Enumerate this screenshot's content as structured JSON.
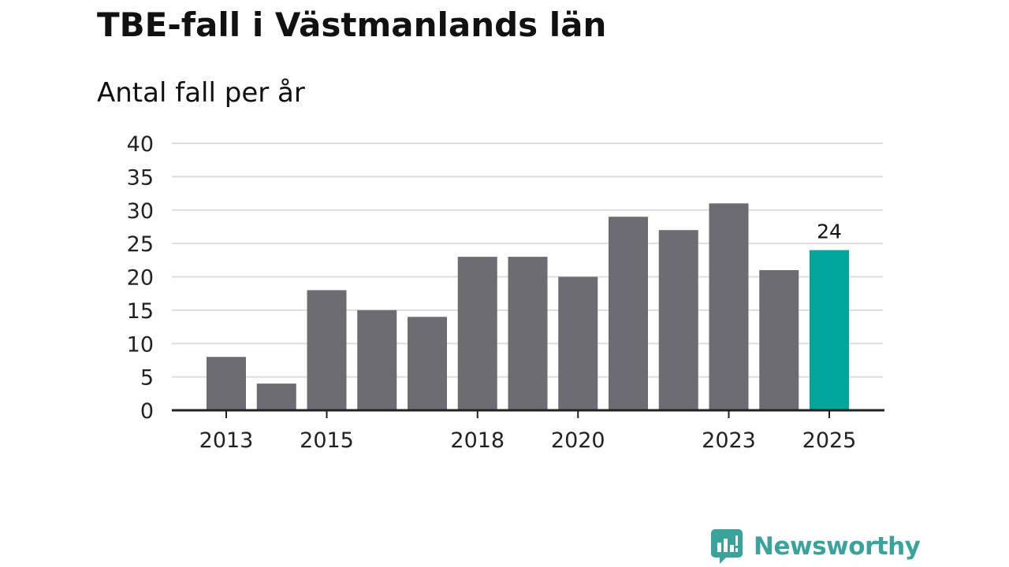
{
  "chart_data": {
    "type": "bar",
    "title": "TBE-fall i Västmanlands län",
    "subtitle": "Antal fall per år",
    "xlabel": "",
    "ylabel": "",
    "categories": [
      "2013",
      "2014",
      "2015",
      "2016",
      "2017",
      "2018",
      "2019",
      "2020",
      "2021",
      "2022",
      "2023",
      "2024",
      "2025"
    ],
    "values": [
      8,
      4,
      18,
      15,
      14,
      23,
      23,
      20,
      29,
      27,
      31,
      21,
      24
    ],
    "x_tick_labels": [
      "2013",
      "2015",
      "2018",
      "2020",
      "2023",
      "2025"
    ],
    "y_ticks": [
      0,
      5,
      10,
      15,
      20,
      25,
      30,
      35,
      40
    ],
    "ylim": [
      0,
      40
    ],
    "grid": true,
    "highlight": {
      "category": "2025",
      "label": "24"
    },
    "colors": {
      "bar": "#6d6c73",
      "highlight": "#00a69c",
      "grid": "#dddddd",
      "axis": "#222222"
    }
  },
  "footer": {
    "brand_name": "Newsworthy",
    "brand_icon": "newsworthy-logo-icon",
    "brand_color": "#3aa39c"
  }
}
